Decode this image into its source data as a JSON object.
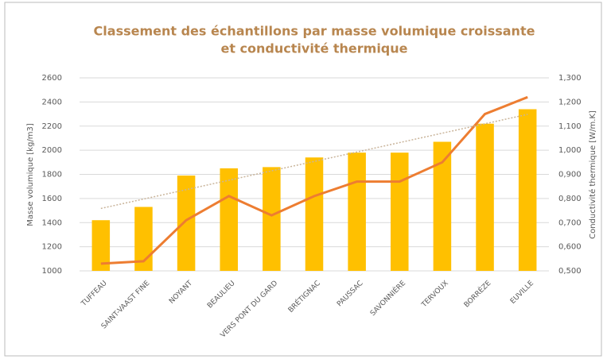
{
  "chart_data": {
    "type": "bar-line",
    "title": [
      "Classement des échantillons par masse volumique croissante",
      "et conductivité thermique"
    ],
    "ylabel": "Masse volumique [kg/m3]",
    "y2label": "Conductivité thermique [W/m.K]",
    "categories": [
      "TUFFEAU",
      "SAINT-VAAST FINE",
      "NOYANT",
      "BEAULIEU",
      "VERS PONT DU GARD",
      "BRÉTIGNAC",
      "PAUSSAC",
      "SAVONNIÈRE",
      "TERVOUX",
      "BORRÈZE",
      "EUVILLE"
    ],
    "series": [
      {
        "type": "bar",
        "color": "#ffc000",
        "values": [
          1420,
          1530,
          1790,
          1850,
          1860,
          1940,
          1980,
          1980,
          2070,
          2220,
          2340
        ]
      },
      {
        "type": "line",
        "axis": "y2",
        "color": "#ed7d31",
        "values": [
          0.53,
          0.54,
          0.71,
          0.81,
          0.73,
          0.81,
          0.87,
          0.87,
          0.95,
          1.15,
          1.22
        ]
      }
    ],
    "trendline": true,
    "ylim": [
      1000,
      2600
    ],
    "yticks": [
      1000,
      1200,
      1400,
      1600,
      1800,
      2000,
      2200,
      2400,
      2600
    ],
    "y2lim": [
      0.5,
      1.3
    ],
    "y2ticks": [
      {
        "value": 0.5,
        "label": "0,500"
      },
      {
        "value": 0.6,
        "label": "0,600"
      },
      {
        "value": 0.7,
        "label": "0,700"
      },
      {
        "value": 0.8,
        "label": "0,800"
      },
      {
        "value": 0.9,
        "label": "0,900"
      },
      {
        "value": 1.0,
        "label": "1,000"
      },
      {
        "value": 1.1,
        "label": "1,100"
      },
      {
        "value": 1.2,
        "label": "1,200"
      },
      {
        "value": 1.3,
        "label": "1,300"
      }
    ],
    "grid": true
  }
}
